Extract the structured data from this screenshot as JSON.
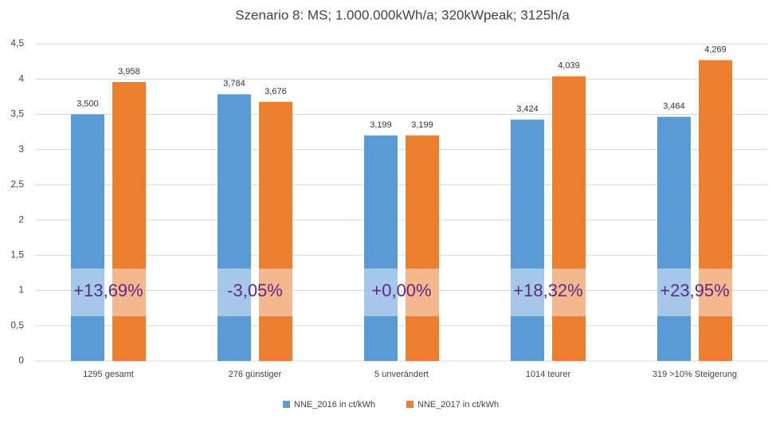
{
  "chart_data": {
    "type": "bar",
    "title": "Szenario 8: MS; 1.000.000kWh/a; 320kWpeak; 3125h/a",
    "categories": [
      "1295 gesamt",
      "276 günstiger",
      "5 unverändert",
      "1014 teurer",
      "319 >10% Steigerung"
    ],
    "series": [
      {
        "name": "NNE_2016 in ct/kWh",
        "color": "#5b9bd5",
        "values": [
          3.5,
          3.784,
          3.199,
          3.424,
          3.464
        ],
        "value_labels": [
          "3,500",
          "3,784",
          "3,199",
          "3,424",
          "3,464"
        ]
      },
      {
        "name": "NNE_2017 in ct/kWh",
        "color": "#ed7d31",
        "values": [
          3.958,
          3.676,
          3.199,
          4.039,
          4.269
        ],
        "value_labels": [
          "3,958",
          "3,676",
          "3,199",
          "4,039",
          "4,269"
        ]
      }
    ],
    "annotations": [
      "+13,69%",
      "-3,05%",
      "+0,00%",
      "+18,32%",
      "+23,95%"
    ],
    "ylim": [
      0,
      4.5
    ],
    "yticks": [
      0,
      {
        "value": 0.5,
        "label": "0,5"
      },
      1,
      {
        "value": 1.5,
        "label": "1,5"
      },
      2,
      {
        "value": 2.5,
        "label": "2,5"
      },
      3,
      {
        "value": 3.5,
        "label": "3,5"
      },
      4,
      {
        "value": 4.5,
        "label": "4,5"
      }
    ],
    "grid": true,
    "legend": "bottom"
  }
}
